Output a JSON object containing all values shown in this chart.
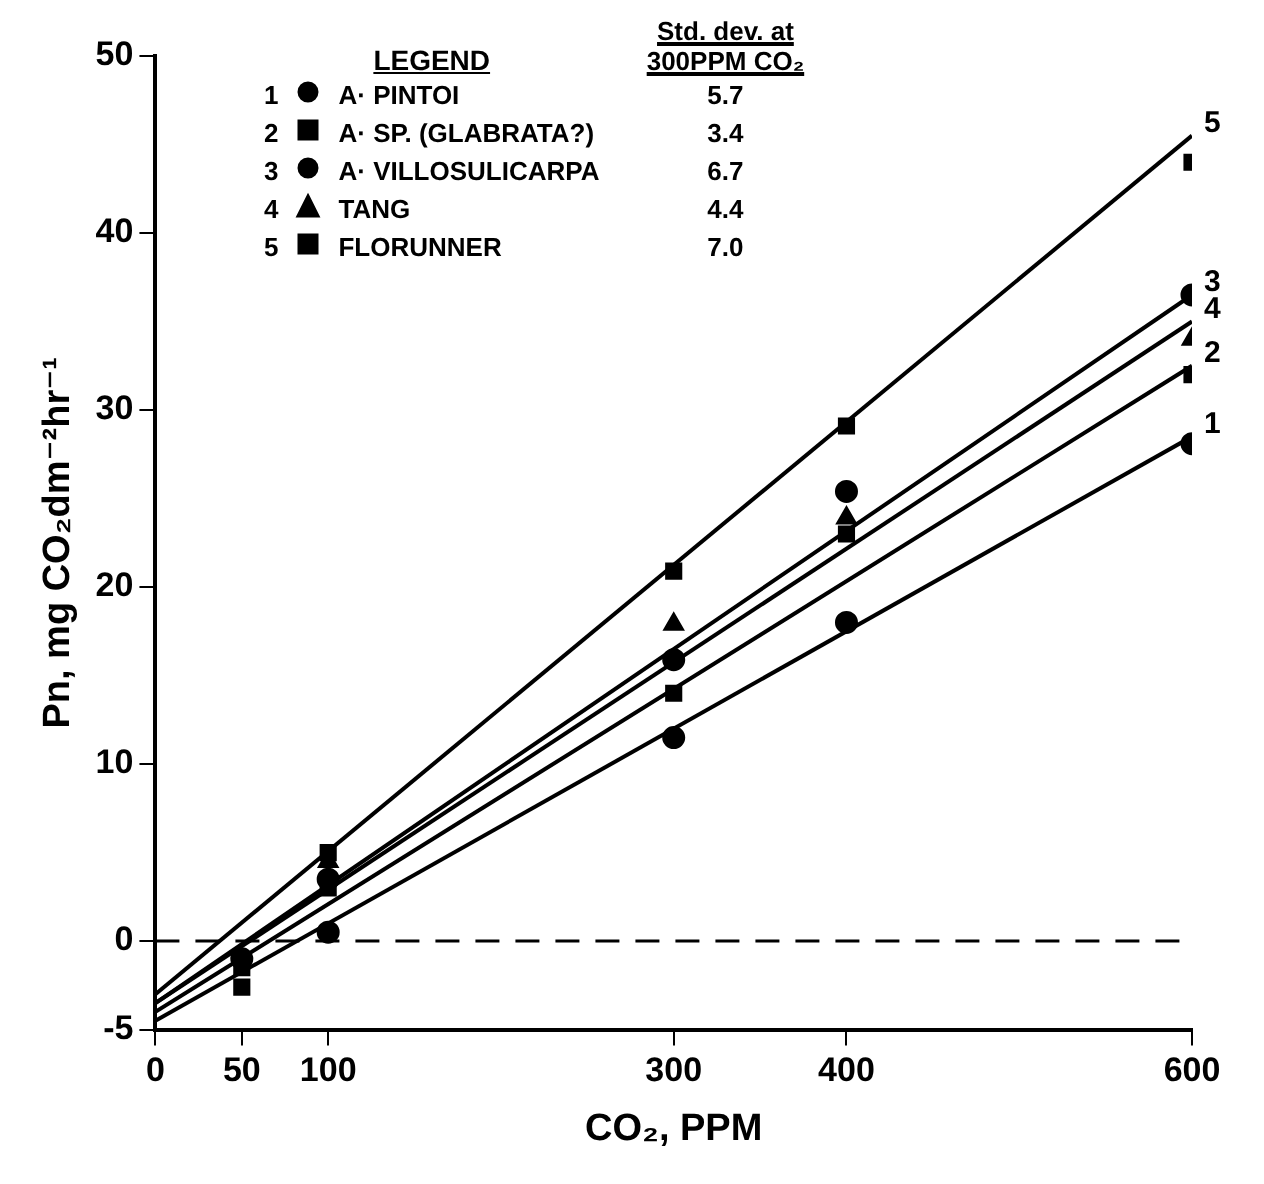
{
  "chart_data": {
    "type": "scatter",
    "xlabel": "CO₂, PPM",
    "ylabel": "Pn, mg CO₂dm⁻²hr⁻¹",
    "legend_title": "LEGEND",
    "xlim": [
      0,
      600
    ],
    "xticks": [
      0,
      50,
      100,
      300,
      400,
      600
    ],
    "ylim": [
      -5,
      50
    ],
    "yticks": [
      -5,
      0,
      10,
      20,
      30,
      40,
      50
    ],
    "grid": false,
    "legend": "top left",
    "series": [
      {
        "name": "A· PINTOI",
        "color": "#000000",
        "marker": "circle",
        "x": [
          100,
          300,
          400,
          600
        ],
        "values": [
          0.5,
          11.5,
          18.0,
          28.1
        ]
      },
      {
        "name": "A· SP. (GLABRATA?)",
        "color": "#000000",
        "marker": "square",
        "x": [
          50,
          100,
          300,
          400,
          600
        ],
        "values": [
          -1.5,
          3,
          14.0,
          23.0,
          32
        ]
      },
      {
        "name": "A· VILLOSULICARPA",
        "color": "#000000",
        "marker": "circle",
        "x": [
          50,
          100,
          300,
          400,
          600
        ],
        "values": [
          -1,
          3.5,
          15.9,
          25.4,
          36.5
        ]
      },
      {
        "name": "TANG",
        "color": "#000000",
        "marker": "triangle",
        "x": [
          100,
          300,
          400,
          600
        ],
        "values": [
          4.5,
          17.9,
          23.9,
          34
        ]
      },
      {
        "name": "FLORUNNER",
        "color": "#000000",
        "marker": "square",
        "x": [
          50,
          100,
          300,
          400,
          600
        ],
        "values": [
          -2.6,
          5,
          20.9,
          29.1,
          44
        ]
      },
      {
        "type": "line",
        "color": "#000000",
        "x": [
          0,
          600
        ],
        "values": [
          -4.5,
          28.5
        ]
      },
      {
        "type": "line",
        "color": "#000000",
        "x": [
          0,
          600
        ],
        "values": [
          -4,
          32.5
        ]
      },
      {
        "type": "line",
        "color": "#000000",
        "x": [
          0,
          600
        ],
        "values": [
          -3.5,
          36.5
        ]
      },
      {
        "type": "line",
        "color": "#000000",
        "x": [
          0,
          600
        ],
        "values": [
          -3.5,
          35
        ]
      },
      {
        "type": "line",
        "color": "#000000",
        "x": [
          0,
          600
        ],
        "values": [
          -3,
          45.5
        ]
      }
    ],
    "ref_lines": [
      {
        "axis": "y",
        "value": 0,
        "line_style": "dashed",
        "color": "#000000"
      }
    ],
    "annotations": [
      "1",
      "2",
      "3",
      "4",
      "5",
      "Std. dev. at 300PPM CO₂",
      "5.7",
      "3.4",
      "6.7",
      "4.4",
      "7.0"
    ]
  }
}
